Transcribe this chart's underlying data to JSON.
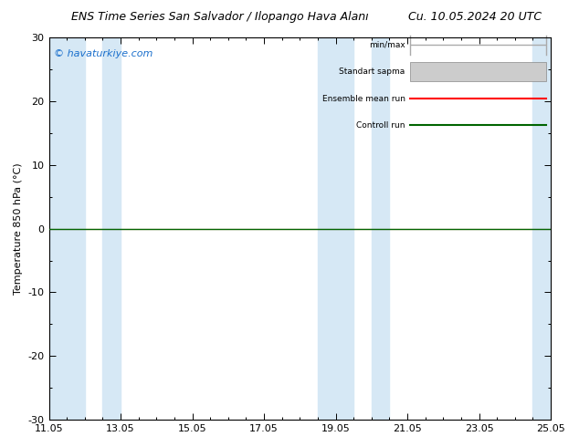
{
  "title_left": "ENS Time Series San Salvador / Ilopango Hava Alanı",
  "title_right": "Cu. 10.05.2024 20 UTC",
  "ylabel": "Temperature 850 hPa (°C)",
  "watermark": "© havaturkiye.com",
  "ylim": [
    -30,
    30
  ],
  "yticks": [
    -30,
    -20,
    -10,
    0,
    10,
    20,
    30
  ],
  "xlim_start": 0,
  "xlim_end": 14,
  "x_tick_labels": [
    "11.05",
    "13.05",
    "15.05",
    "17.05",
    "19.05",
    "21.05",
    "23.05",
    "25.05"
  ],
  "x_tick_positions": [
    0,
    2,
    4,
    6,
    8,
    10,
    12,
    14
  ],
  "shaded_bands": [
    {
      "xmin": 0,
      "xmax": 1
    },
    {
      "xmin": 1.5,
      "xmax": 2
    },
    {
      "xmin": 7.5,
      "xmax": 8.5
    },
    {
      "xmin": 9,
      "xmax": 9.5
    },
    {
      "xmin": 13.5,
      "xmax": 14
    }
  ],
  "band_color": "#d6e8f5",
  "background_color": "#ffffff",
  "plot_bg_color": "#ffffff",
  "zero_line_color": "#006400",
  "ensemble_mean_color": "#ff0000",
  "control_run_color": "#006400",
  "legend_labels": [
    "min/max",
    "Standart sapma",
    "Ensemble mean run",
    "Controll run"
  ],
  "legend_colors": [
    "#aaaaaa",
    "#cccccc",
    "#ff0000",
    "#006400"
  ],
  "tick_color": "#000000",
  "axis_color": "#000000",
  "title_fontsize": 9,
  "label_fontsize": 8,
  "tick_fontsize": 8,
  "watermark_fontsize": 8,
  "watermark_color": "#1a6fcc"
}
